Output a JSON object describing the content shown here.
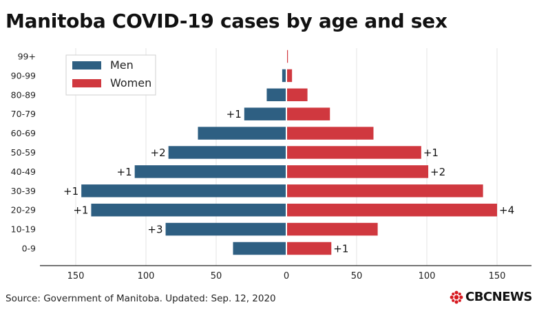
{
  "title": "Manitoba COVID-19 cases by age and sex",
  "source": "Source: Government of Manitoba. Updated: Sep. 12, 2020",
  "brand": {
    "name": "CBCNEWS",
    "icon": "cbc-gem-logo",
    "color": "#d71920"
  },
  "chart_data": {
    "type": "bar",
    "orientation": "horizontal-population-pyramid",
    "categories": [
      "99+",
      "90-99",
      "80-89",
      "70-79",
      "60-69",
      "50-59",
      "40-49",
      "30-39",
      "20-29",
      "10-19",
      "0-9"
    ],
    "series": [
      {
        "name": "Men",
        "color": "#2e5f82",
        "values": [
          0,
          3,
          14,
          30,
          63,
          84,
          108,
          146,
          139,
          86,
          38
        ],
        "annotations": [
          "",
          "",
          "",
          "+1",
          "",
          "+2",
          "+1",
          "+1",
          "+1",
          "+3",
          ""
        ]
      },
      {
        "name": "Women",
        "color": "#d0383f",
        "values": [
          0.5,
          4,
          15,
          31,
          62,
          96,
          101,
          140,
          150,
          65,
          32
        ],
        "annotations": [
          "",
          "",
          "",
          "",
          "",
          "+1",
          "+2",
          "",
          "+4",
          "",
          "+1"
        ]
      }
    ],
    "xaxis": {
      "ticks": [
        -150,
        -100,
        -50,
        0,
        50,
        100,
        150
      ],
      "tick_labels": [
        "150",
        "100",
        "50",
        "0",
        "50",
        "100",
        "150"
      ],
      "xlim": [
        -175,
        175
      ]
    },
    "grid": true,
    "legend": {
      "placement": "top-left",
      "entries": [
        "Men",
        "Women"
      ]
    }
  }
}
